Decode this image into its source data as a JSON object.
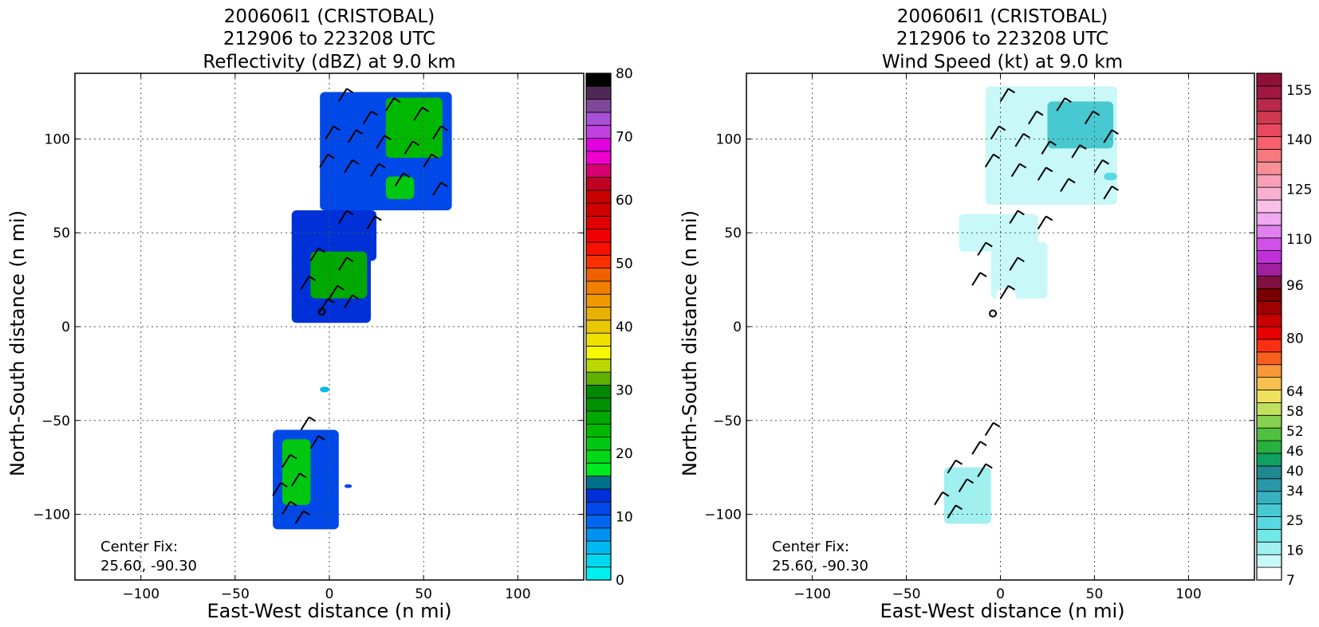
{
  "chart_data": [
    {
      "type": "heatmap",
      "title": [
        "200606I1 (CRISTOBAL)",
        "212906 to 223208 UTC",
        "Reflectivity (dBZ) at 9.0 km"
      ],
      "xlabel": "East-West distance (n mi)",
      "ylabel": "North-South distance (n mi)",
      "xlim": [
        -135,
        135
      ],
      "ylim": [
        -135,
        135
      ],
      "xticks": [
        -100,
        -50,
        0,
        50,
        100
      ],
      "yticks": [
        -100,
        -50,
        0,
        50,
        100
      ],
      "xtick_labels": [
        "−100",
        "−50",
        "0",
        "50",
        "100"
      ],
      "ytick_labels": [
        "−100",
        "−50",
        "0",
        "50",
        "100"
      ],
      "grid": true,
      "center_fix_label": "Center Fix:",
      "center_fix_value": "25.60, -90.30",
      "center_marker": [
        -4,
        8
      ],
      "colorbar": {
        "min": 0,
        "max": 80,
        "tick_values": [
          0,
          10,
          20,
          30,
          40,
          50,
          60,
          70,
          80
        ],
        "tick_labels": [
          "0",
          "10",
          "20",
          "30",
          "40",
          "50",
          "60",
          "70",
          "80"
        ],
        "colors": [
          "#00f0f0",
          "#00d8f0",
          "#00b8f0",
          "#0090f0",
          "#0068f0",
          "#0048e8",
          "#0030d8",
          "#00708a",
          "#00e820",
          "#00d818",
          "#00c810",
          "#00b800",
          "#00a800",
          "#009000",
          "#008800",
          "#60b000",
          "#b8d800",
          "#f8f800",
          "#f0e000",
          "#e8c800",
          "#e8b000",
          "#f09800",
          "#f08000",
          "#f06000",
          "#f83000",
          "#f81000",
          "#f00000",
          "#e00000",
          "#d00000",
          "#c80000",
          "#c00020",
          "#d80070",
          "#f000d0",
          "#e000e0",
          "#c040e0",
          "#a850d8",
          "#804898",
          "#502858",
          "#000000"
        ]
      },
      "field_blobs": [
        {
          "x": [
            -5,
            65
          ],
          "y": [
            62,
            125
          ],
          "value": 12
        },
        {
          "x": [
            -20,
            25
          ],
          "y": [
            35,
            62
          ],
          "value": 13
        },
        {
          "x": [
            -20,
            22
          ],
          "y": [
            2,
            40
          ],
          "value": 14
        },
        {
          "x": [
            -30,
            5
          ],
          "y": [
            -108,
            -55
          ],
          "value": 12
        },
        {
          "x": [
            30,
            60
          ],
          "y": [
            90,
            122
          ],
          "value": 24
        },
        {
          "x": [
            -10,
            20
          ],
          "y": [
            15,
            40
          ],
          "value": 26
        },
        {
          "x": [
            30,
            45
          ],
          "y": [
            68,
            80
          ],
          "value": 22
        },
        {
          "x": [
            -25,
            -10
          ],
          "y": [
            -95,
            -60
          ],
          "value": 22
        },
        {
          "x": [
            -5,
            0
          ],
          "y": [
            -35,
            -32
          ],
          "value": 5
        },
        {
          "x": [
            8,
            12
          ],
          "y": [
            -86,
            -84
          ],
          "value": 12
        }
      ],
      "wind_barbs": [
        [
          5,
          120
        ],
        [
          18,
          108
        ],
        [
          30,
          115
        ],
        [
          45,
          110
        ],
        [
          55,
          100
        ],
        [
          -2,
          100
        ],
        [
          10,
          98
        ],
        [
          25,
          95
        ],
        [
          40,
          92
        ],
        [
          50,
          85
        ],
        [
          -5,
          85
        ],
        [
          8,
          82
        ],
        [
          22,
          80
        ],
        [
          35,
          75
        ],
        [
          55,
          70
        ],
        [
          5,
          55
        ],
        [
          20,
          52
        ],
        [
          -10,
          35
        ],
        [
          5,
          30
        ],
        [
          -15,
          20
        ],
        [
          0,
          15
        ],
        [
          -5,
          8
        ],
        [
          8,
          10
        ],
        [
          -15,
          -55
        ],
        [
          -10,
          -65
        ],
        [
          -25,
          -75
        ],
        [
          -20,
          -85
        ],
        [
          -30,
          -90
        ],
        [
          -25,
          -100
        ],
        [
          -18,
          -105
        ]
      ]
    },
    {
      "type": "heatmap",
      "title": [
        "200606I1 (CRISTOBAL)",
        "212906 to 223208 UTC",
        "Wind Speed (kt) at 9.0 km"
      ],
      "xlabel": "East-West distance (n mi)",
      "ylabel": "North-South distance (n mi)",
      "xlim": [
        -135,
        135
      ],
      "ylim": [
        -135,
        135
      ],
      "xticks": [
        -100,
        -50,
        0,
        50,
        100
      ],
      "yticks": [
        -100,
        -50,
        0,
        50,
        100
      ],
      "xtick_labels": [
        "−100",
        "−50",
        "0",
        "50",
        "100"
      ],
      "ytick_labels": [
        "−100",
        "−50",
        "0",
        "50",
        "100"
      ],
      "grid": true,
      "center_fix_label": "Center Fix:",
      "center_fix_value": "25.60, -90.30",
      "center_marker": [
        -4,
        7
      ],
      "colorbar": {
        "min": 7,
        "max": 160,
        "tick_values": [
          7,
          16,
          25,
          34,
          40,
          46,
          52,
          58,
          64,
          80,
          96,
          110,
          125,
          140,
          155
        ],
        "tick_labels": [
          "7",
          "16",
          "25",
          "34",
          "40",
          "46",
          "52",
          "58",
          "64",
          "80",
          "96",
          "110",
          "125",
          "140",
          "155"
        ],
        "colors": [
          "#ffffff",
          "#c8f8f8",
          "#a0f0f0",
          "#70e8e8",
          "#58d8e0",
          "#48c8d0",
          "#38b0c0",
          "#2898a8",
          "#208890",
          "#10a060",
          "#28b040",
          "#50c040",
          "#88d050",
          "#c0e060",
          "#f0e060",
          "#f8c050",
          "#f89838",
          "#f86020",
          "#f83010",
          "#e80000",
          "#c80000",
          "#a00000",
          "#780000",
          "#801040",
          "#a020a0",
          "#c030d8",
          "#d050e8",
          "#e080f0",
          "#f0a8f0",
          "#f8c0e8",
          "#f8b0d0",
          "#f8a0b8",
          "#f89098",
          "#f87880",
          "#f86070",
          "#e84860",
          "#d03850",
          "#b82848",
          "#a01840",
          "#901038"
        ]
      },
      "field_blobs": [
        {
          "x": [
            -8,
            62
          ],
          "y": [
            65,
            128
          ],
          "value": 14
        },
        {
          "x": [
            25,
            60
          ],
          "y": [
            95,
            120
          ],
          "value": 27
        },
        {
          "x": [
            -22,
            20
          ],
          "y": [
            40,
            60
          ],
          "value": 13
        },
        {
          "x": [
            -5,
            25
          ],
          "y": [
            15,
            45
          ],
          "value": 11
        },
        {
          "x": [
            -2,
            8
          ],
          "y": [
            0,
            20
          ],
          "value": 10
        },
        {
          "x": [
            -30,
            -5
          ],
          "y": [
            -105,
            -75
          ],
          "value": 15
        },
        {
          "x": [
            -15,
            10
          ],
          "y": [
            -72,
            -50
          ],
          "value": 9
        },
        {
          "x": [
            -3,
            3
          ],
          "y": [
            -35,
            -32
          ],
          "value": 9
        },
        {
          "x": [
            55,
            62
          ],
          "y": [
            78,
            82
          ],
          "value": 25
        }
      ],
      "wind_barbs": [
        [
          0,
          120
        ],
        [
          15,
          108
        ],
        [
          30,
          115
        ],
        [
          45,
          108
        ],
        [
          55,
          98
        ],
        [
          -5,
          100
        ],
        [
          8,
          96
        ],
        [
          22,
          92
        ],
        [
          38,
          90
        ],
        [
          50,
          82
        ],
        [
          -8,
          85
        ],
        [
          6,
          80
        ],
        [
          20,
          78
        ],
        [
          32,
          72
        ],
        [
          55,
          68
        ],
        [
          5,
          55
        ],
        [
          20,
          52
        ],
        [
          -12,
          38
        ],
        [
          5,
          30
        ],
        [
          -15,
          22
        ],
        [
          0,
          15
        ],
        [
          -8,
          -58
        ],
        [
          -15,
          -68
        ],
        [
          -28,
          -78
        ],
        [
          -22,
          -88
        ],
        [
          -35,
          -95
        ],
        [
          -28,
          -102
        ],
        [
          -12,
          -80
        ]
      ]
    }
  ]
}
